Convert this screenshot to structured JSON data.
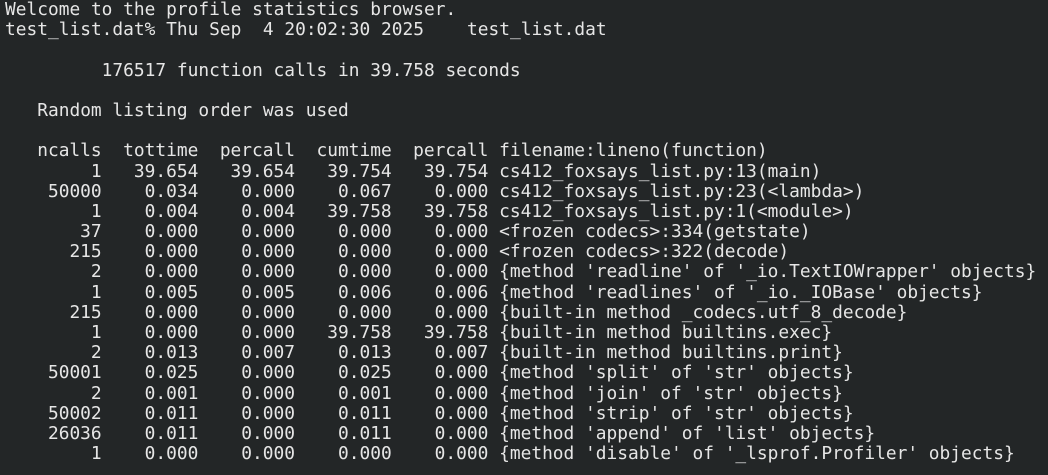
{
  "terminal": {
    "welcome": "Welcome to the profile statistics browser.",
    "prompt": "test_list.dat%",
    "date": "Thu Sep  4 20:02:30 2025",
    "file": "test_list.dat",
    "summary": "176517 function calls in 39.758 seconds",
    "order_note": "Random listing order was used",
    "columns": [
      "ncalls",
      "tottime",
      "percall",
      "cumtime",
      "percall",
      "filename:lineno(function)"
    ],
    "rows": [
      [
        "1",
        "39.654",
        "39.654",
        "39.754",
        "39.754",
        "cs412_foxsays_list.py:13(main)"
      ],
      [
        "50000",
        "0.034",
        "0.000",
        "0.067",
        "0.000",
        "cs412_foxsays_list.py:23(<lambda>)"
      ],
      [
        "1",
        "0.004",
        "0.004",
        "39.758",
        "39.758",
        "cs412_foxsays_list.py:1(<module>)"
      ],
      [
        "37",
        "0.000",
        "0.000",
        "0.000",
        "0.000",
        "<frozen codecs>:334(getstate)"
      ],
      [
        "215",
        "0.000",
        "0.000",
        "0.000",
        "0.000",
        "<frozen codecs>:322(decode)"
      ],
      [
        "2",
        "0.000",
        "0.000",
        "0.000",
        "0.000",
        "{method 'readline' of '_io.TextIOWrapper' objects}"
      ],
      [
        "1",
        "0.005",
        "0.005",
        "0.006",
        "0.006",
        "{method 'readlines' of '_io._IOBase' objects}"
      ],
      [
        "215",
        "0.000",
        "0.000",
        "0.000",
        "0.000",
        "{built-in method _codecs.utf_8_decode}"
      ],
      [
        "1",
        "0.000",
        "0.000",
        "39.758",
        "39.758",
        "{built-in method builtins.exec}"
      ],
      [
        "2",
        "0.013",
        "0.007",
        "0.013",
        "0.007",
        "{built-in method builtins.print}"
      ],
      [
        "50001",
        "0.025",
        "0.000",
        "0.025",
        "0.000",
        "{method 'split' of 'str' objects}"
      ],
      [
        "2",
        "0.001",
        "0.000",
        "0.001",
        "0.000",
        "{method 'join' of 'str' objects}"
      ],
      [
        "50002",
        "0.011",
        "0.000",
        "0.011",
        "0.000",
        "{method 'strip' of 'str' objects}"
      ],
      [
        "26036",
        "0.011",
        "0.000",
        "0.011",
        "0.000",
        "{method 'append' of 'list' objects}"
      ],
      [
        "1",
        "0.000",
        "0.000",
        "0.000",
        "0.000",
        "{method 'disable' of '_lsprof.Profiler' objects}"
      ]
    ]
  }
}
